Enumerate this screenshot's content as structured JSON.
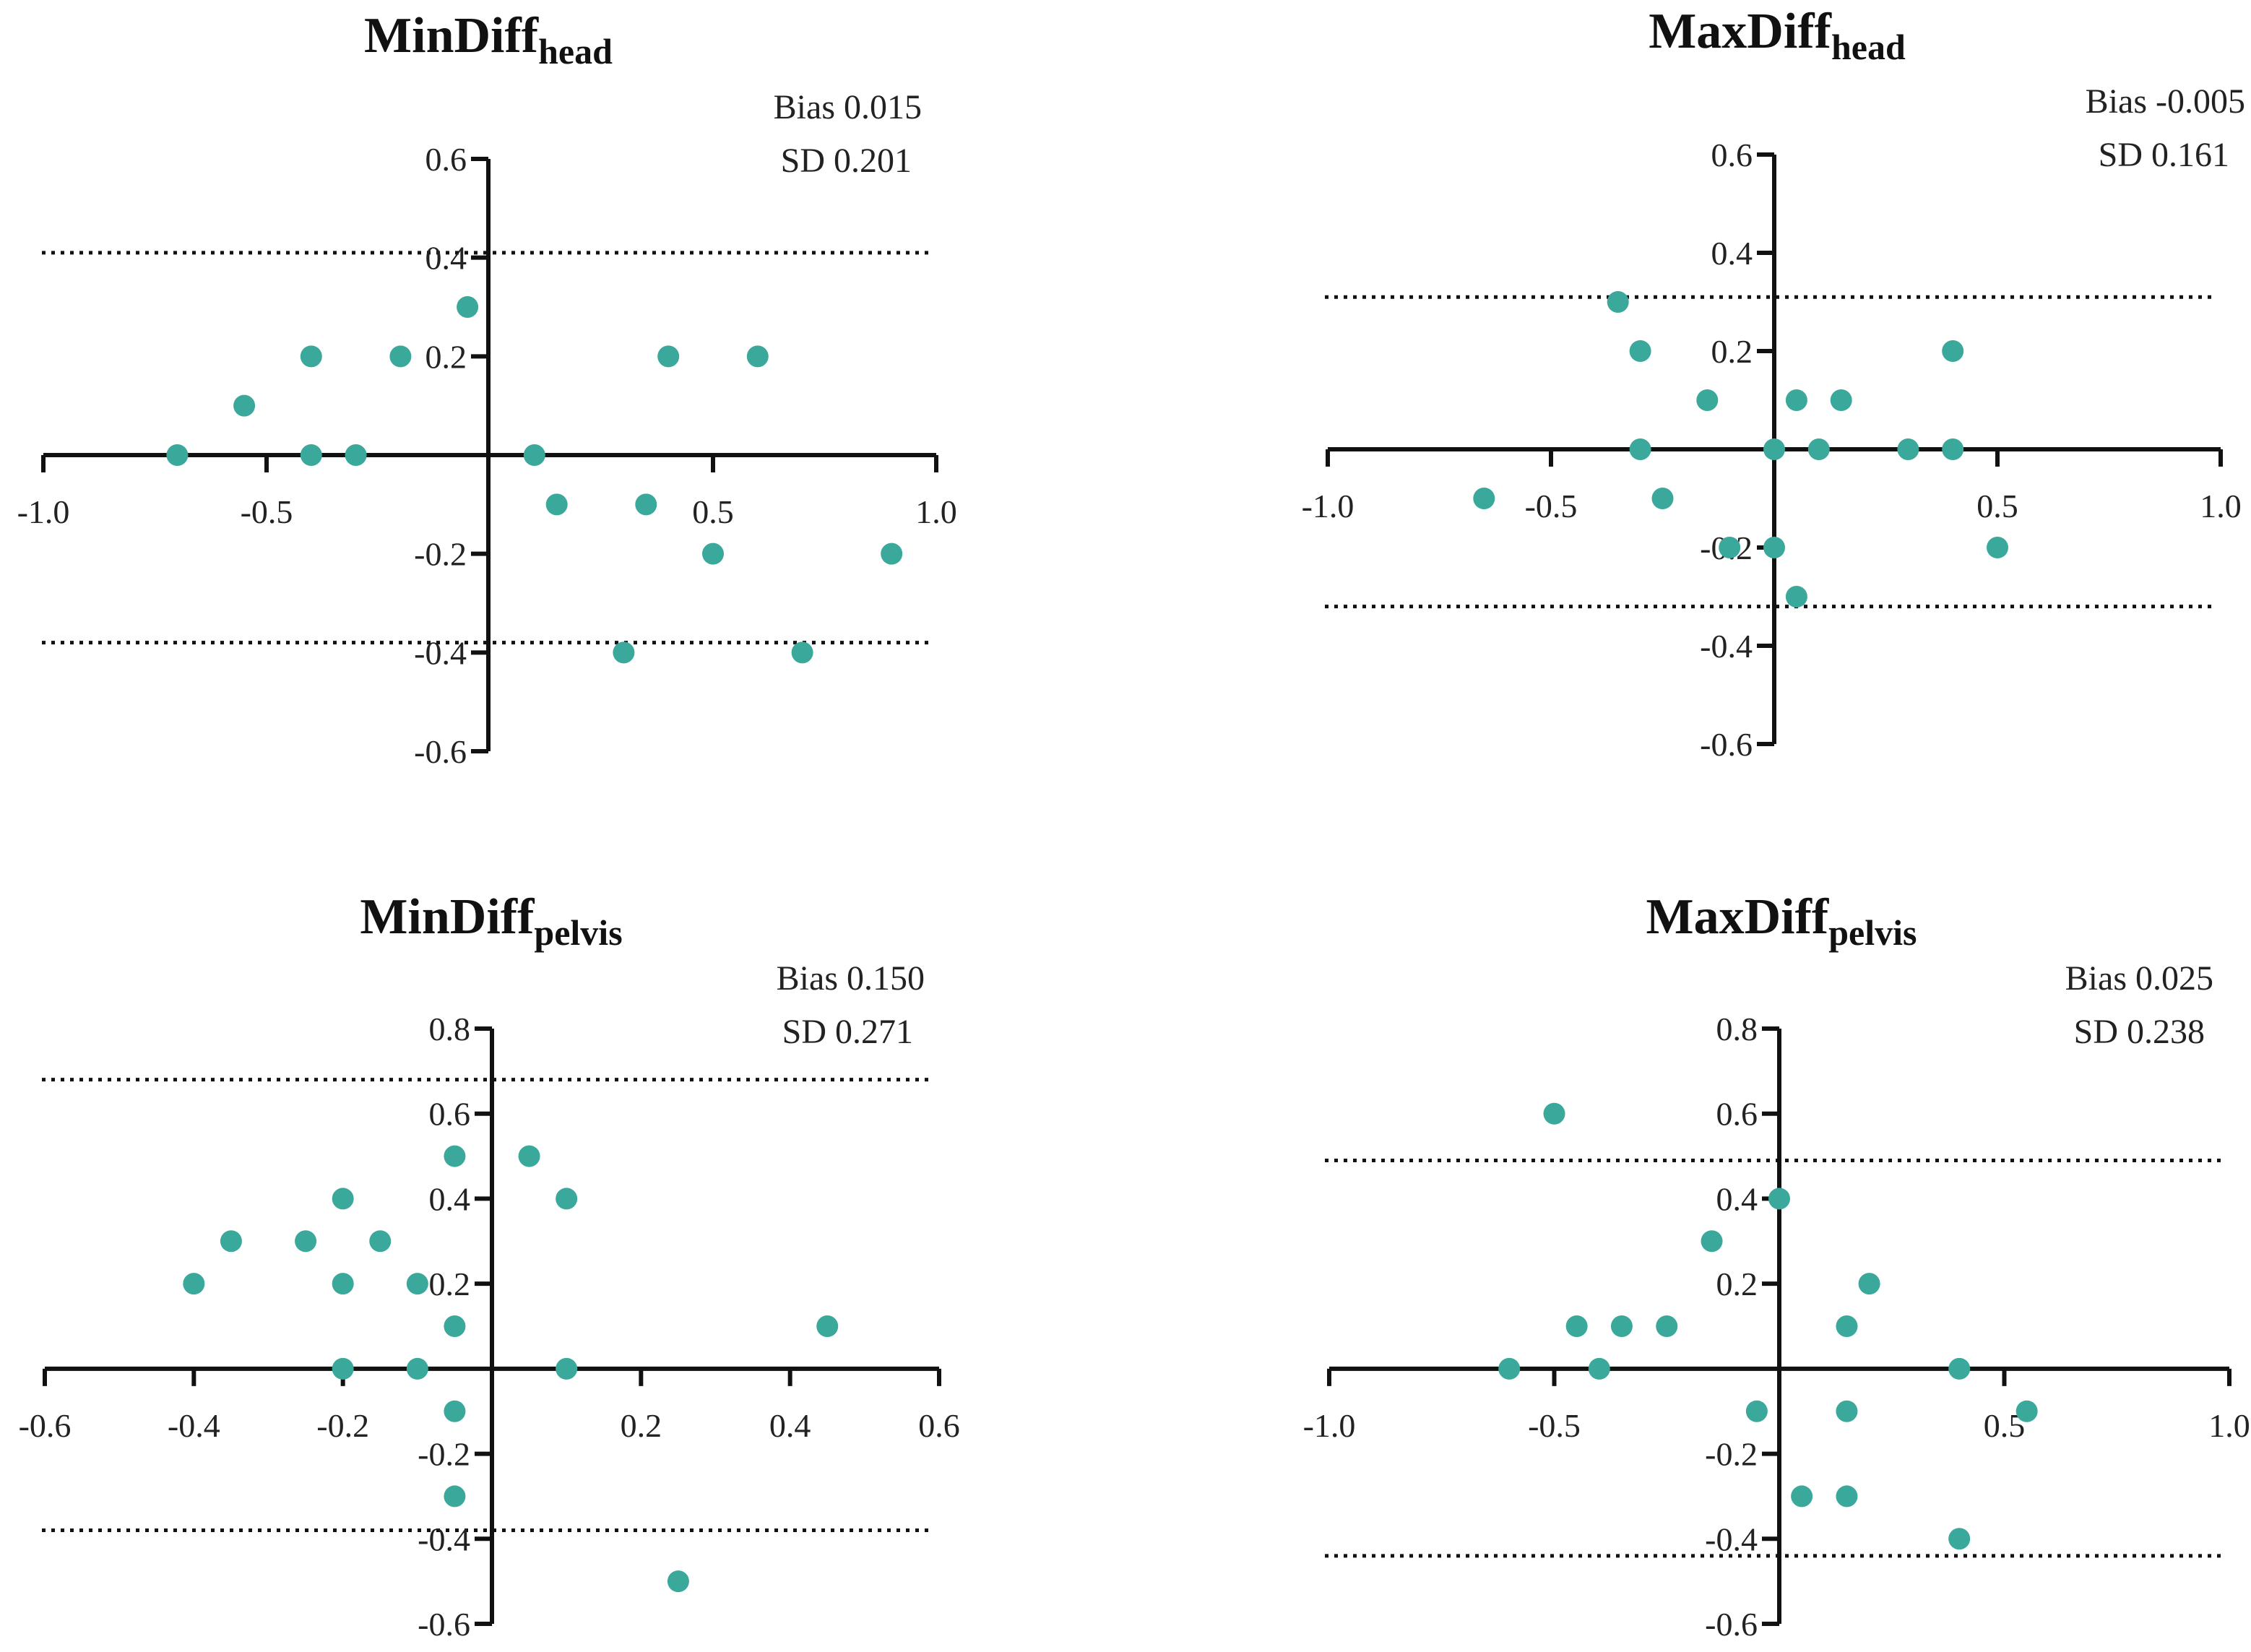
{
  "colors": {
    "point": "#3aa89a",
    "axis": "#111111",
    "loa_line": "#111111"
  },
  "chart_data": [
    {
      "type": "scatter",
      "title": "MinDiff",
      "title_sub": "head",
      "bias_label": "Bias 0.015",
      "sd_label": "SD 0.201",
      "xlim": [
        -1.0,
        1.0
      ],
      "ylim": [
        -0.6,
        0.6
      ],
      "x_ticks": [
        "-1.0",
        "-0.5",
        "0.5",
        "1.0"
      ],
      "y_ticks": [
        "0.6",
        "0.4",
        "0.2",
        "-0.2",
        "-0.4",
        "-0.6"
      ],
      "loa": [
        0.41,
        -0.38
      ],
      "points": [
        {
          "x": -0.7,
          "y": 0.0
        },
        {
          "x": -0.55,
          "y": 0.1
        },
        {
          "x": -0.4,
          "y": 0.2
        },
        {
          "x": -0.4,
          "y": 0.0
        },
        {
          "x": -0.3,
          "y": 0.0
        },
        {
          "x": -0.2,
          "y": 0.2
        },
        {
          "x": -0.05,
          "y": 0.3
        },
        {
          "x": 0.1,
          "y": 0.0
        },
        {
          "x": 0.15,
          "y": -0.1
        },
        {
          "x": 0.3,
          "y": -0.4
        },
        {
          "x": 0.35,
          "y": -0.1
        },
        {
          "x": 0.4,
          "y": 0.2
        },
        {
          "x": 0.5,
          "y": -0.2
        },
        {
          "x": 0.6,
          "y": 0.2
        },
        {
          "x": 0.7,
          "y": -0.4
        },
        {
          "x": 0.9,
          "y": -0.2
        }
      ]
    },
    {
      "type": "scatter",
      "title": "MaxDiff",
      "title_sub": "head",
      "bias_label": "Bias -0.005",
      "sd_label": "SD 0.161",
      "xlim": [
        -1.0,
        1.0
      ],
      "ylim": [
        -0.6,
        0.6
      ],
      "x_ticks": [
        "-1.0",
        "-0.5",
        "0.5",
        "1.0"
      ],
      "y_ticks": [
        "0.6",
        "0.4",
        "0.2",
        "-0.2",
        "-0.4",
        "-0.6"
      ],
      "loa": [
        0.31,
        -0.32
      ],
      "points": [
        {
          "x": -0.65,
          "y": -0.1
        },
        {
          "x": -0.35,
          "y": 0.3
        },
        {
          "x": -0.3,
          "y": 0.2
        },
        {
          "x": -0.3,
          "y": 0.0
        },
        {
          "x": -0.25,
          "y": -0.1
        },
        {
          "x": -0.15,
          "y": 0.1
        },
        {
          "x": -0.1,
          "y": -0.2
        },
        {
          "x": 0.0,
          "y": 0.0
        },
        {
          "x": 0.0,
          "y": -0.2
        },
        {
          "x": 0.05,
          "y": 0.1
        },
        {
          "x": 0.05,
          "y": -0.3
        },
        {
          "x": 0.1,
          "y": 0.0
        },
        {
          "x": 0.15,
          "y": 0.1
        },
        {
          "x": 0.3,
          "y": 0.0
        },
        {
          "x": 0.4,
          "y": 0.2
        },
        {
          "x": 0.4,
          "y": 0.0
        },
        {
          "x": 0.5,
          "y": -0.2
        }
      ]
    },
    {
      "type": "scatter",
      "title": "MinDiff",
      "title_sub": "pelvis",
      "bias_label": "Bias 0.150",
      "sd_label": "SD 0.271",
      "xlim": [
        -0.6,
        0.6
      ],
      "ylim": [
        -0.6,
        0.8
      ],
      "x_ticks": [
        "-0.6",
        "-0.4",
        "-0.2",
        "0.2",
        "0.4",
        "0.6"
      ],
      "y_ticks": [
        "0.8",
        "0.6",
        "0.4",
        "0.2",
        "-0.2",
        "-0.4",
        "-0.6"
      ],
      "loa": [
        0.68,
        -0.38
      ],
      "points": [
        {
          "x": -0.4,
          "y": 0.2
        },
        {
          "x": -0.35,
          "y": 0.3
        },
        {
          "x": -0.25,
          "y": 0.3
        },
        {
          "x": -0.2,
          "y": 0.4
        },
        {
          "x": -0.2,
          "y": 0.2
        },
        {
          "x": -0.2,
          "y": 0.0
        },
        {
          "x": -0.15,
          "y": 0.3
        },
        {
          "x": -0.1,
          "y": 0.2
        },
        {
          "x": -0.1,
          "y": 0.0
        },
        {
          "x": -0.05,
          "y": 0.5
        },
        {
          "x": -0.05,
          "y": 0.1
        },
        {
          "x": -0.05,
          "y": -0.1
        },
        {
          "x": -0.05,
          "y": -0.3
        },
        {
          "x": 0.05,
          "y": 0.5
        },
        {
          "x": 0.1,
          "y": 0.4
        },
        {
          "x": 0.1,
          "y": 0.0
        },
        {
          "x": 0.25,
          "y": -0.5
        },
        {
          "x": 0.45,
          "y": 0.1
        }
      ]
    },
    {
      "type": "scatter",
      "title": "MaxDiff",
      "title_sub": "pelvis",
      "bias_label": "Bias 0.025",
      "sd_label": "SD 0.238",
      "xlim": [
        -1.0,
        1.0
      ],
      "ylim": [
        -0.6,
        0.8
      ],
      "x_ticks": [
        "-1.0",
        "-0.5",
        "0.5",
        "1.0"
      ],
      "y_ticks": [
        "0.8",
        "0.6",
        "0.4",
        "0.2",
        "-0.2",
        "-0.4",
        "-0.6"
      ],
      "loa": [
        0.49,
        -0.44
      ],
      "points": [
        {
          "x": -0.6,
          "y": 0.0
        },
        {
          "x": -0.5,
          "y": 0.6
        },
        {
          "x": -0.45,
          "y": 0.1
        },
        {
          "x": -0.4,
          "y": 0.0
        },
        {
          "x": -0.35,
          "y": 0.1
        },
        {
          "x": -0.25,
          "y": 0.1
        },
        {
          "x": -0.15,
          "y": 0.3
        },
        {
          "x": -0.05,
          "y": -0.1
        },
        {
          "x": 0.0,
          "y": 0.4
        },
        {
          "x": 0.05,
          "y": -0.3
        },
        {
          "x": 0.15,
          "y": 0.1
        },
        {
          "x": 0.15,
          "y": -0.1
        },
        {
          "x": 0.15,
          "y": -0.3
        },
        {
          "x": 0.2,
          "y": 0.2
        },
        {
          "x": 0.4,
          "y": 0.0
        },
        {
          "x": 0.4,
          "y": -0.4
        },
        {
          "x": 0.55,
          "y": -0.1
        }
      ]
    }
  ]
}
